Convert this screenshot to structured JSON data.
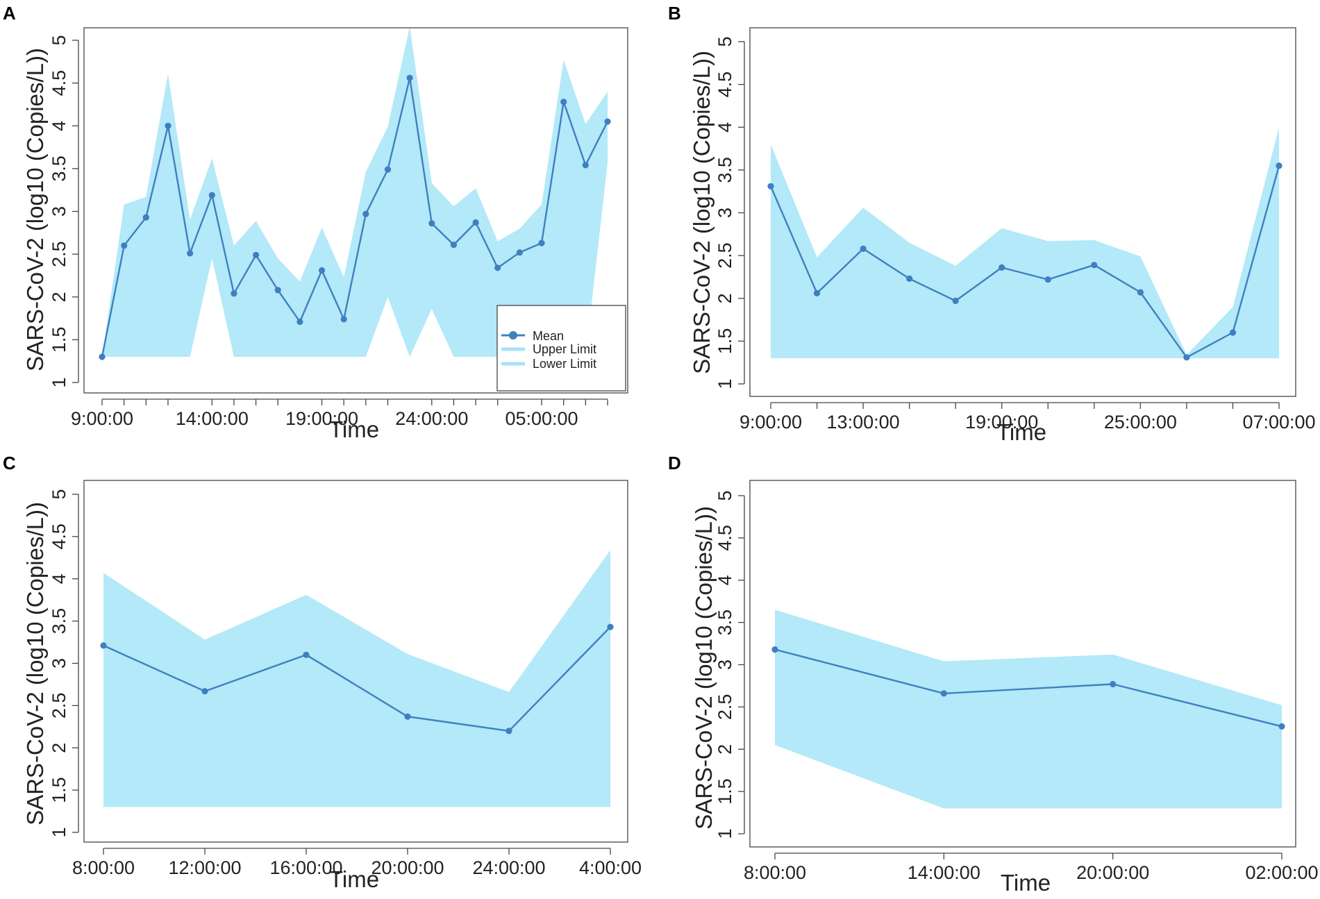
{
  "figure": {
    "colors": {
      "band": "#b3e9f8",
      "mean": "#3f7fc0",
      "axis": "#444444",
      "legend_band": "#a9e2f5"
    }
  },
  "chart_data": [
    {
      "panel": "A",
      "type": "area",
      "xlabel": "Time",
      "ylabel": "SARS-CoV-2 (log10 (Copies/L))",
      "ylim": [
        1,
        5
      ],
      "yticks": [
        "1",
        "1.5",
        "2",
        "2.5",
        "3",
        "3.5",
        "4",
        "4.5",
        "5"
      ],
      "x_index": [
        0,
        1,
        2,
        3,
        4,
        5,
        6,
        7,
        8,
        9,
        10,
        11,
        12,
        13,
        14,
        15,
        16,
        17,
        18,
        19,
        20,
        21,
        22,
        23
      ],
      "xticks": [
        {
          "i": 0,
          "label": "9:00:00"
        },
        {
          "i": 1,
          "label": ""
        },
        {
          "i": 2,
          "label": ""
        },
        {
          "i": 3,
          "label": ""
        },
        {
          "i": 5,
          "label": "14:00:00"
        },
        {
          "i": 6,
          "label": ""
        },
        {
          "i": 7,
          "label": ""
        },
        {
          "i": 8,
          "label": ""
        },
        {
          "i": 10,
          "label": "19:00:00"
        },
        {
          "i": 11,
          "label": ""
        },
        {
          "i": 12,
          "label": ""
        },
        {
          "i": 13,
          "label": ""
        },
        {
          "i": 15,
          "label": "24:00:00"
        },
        {
          "i": 16,
          "label": ""
        },
        {
          "i": 17,
          "label": ""
        },
        {
          "i": 18,
          "label": ""
        },
        {
          "i": 20,
          "label": "05:00:00"
        },
        {
          "i": 21,
          "label": ""
        },
        {
          "i": 22,
          "label": ""
        },
        {
          "i": 23,
          "label": ""
        }
      ],
      "series": [
        {
          "name": "Mean",
          "values": [
            1.3,
            2.6,
            2.93,
            4.0,
            2.51,
            3.19,
            2.04,
            2.49,
            2.08,
            1.71,
            2.31,
            1.74,
            2.97,
            3.49,
            4.56,
            2.86,
            2.61,
            2.87,
            2.34,
            2.52,
            2.63,
            4.28,
            3.54,
            4.05
          ]
        },
        {
          "name": "Upper Limit",
          "values": [
            1.3,
            3.08,
            3.17,
            4.61,
            2.9,
            3.62,
            2.6,
            2.89,
            2.45,
            2.18,
            2.81,
            2.23,
            3.46,
            3.99,
            5.16,
            3.33,
            3.06,
            3.27,
            2.65,
            2.8,
            3.08,
            4.77,
            4.02,
            4.4
          ]
        },
        {
          "name": "Lower Limit",
          "values": [
            1.3,
            1.3,
            1.3,
            1.3,
            1.3,
            2.45,
            1.3,
            1.3,
            1.3,
            1.3,
            1.3,
            1.3,
            1.3,
            2.0,
            1.3,
            1.86,
            1.3,
            1.3,
            1.3,
            1.3,
            1.3,
            1.3,
            1.3,
            3.57
          ]
        }
      ],
      "legend": {
        "position": "inside bottom-right",
        "entries": [
          "Mean",
          "Upper Limit",
          "Lower Limit"
        ]
      }
    },
    {
      "panel": "B",
      "type": "area",
      "xlabel": "Time",
      "ylabel": "SARS-CoV-2 (log10 (Copies/L))",
      "ylim": [
        1,
        5
      ],
      "yticks": [
        "1",
        "1.5",
        "2",
        "2.5",
        "3",
        "3.5",
        "4",
        "4.5",
        "5"
      ],
      "x_index": [
        0,
        1,
        2,
        3,
        4,
        5,
        6,
        7,
        8,
        9,
        10,
        11
      ],
      "xticks": [
        {
          "i": 0,
          "label": "9:00:00"
        },
        {
          "i": 1,
          "label": ""
        },
        {
          "i": 2,
          "label": "13:00:00"
        },
        {
          "i": 3,
          "label": ""
        },
        {
          "i": 4,
          "label": ""
        },
        {
          "i": 5,
          "label": "19:00:00"
        },
        {
          "i": 6,
          "label": ""
        },
        {
          "i": 7,
          "label": ""
        },
        {
          "i": 8,
          "label": "25:00:00"
        },
        {
          "i": 9,
          "label": ""
        },
        {
          "i": 10,
          "label": ""
        },
        {
          "i": 11,
          "label": "07:00:00"
        }
      ],
      "series": [
        {
          "name": "Mean",
          "values": [
            3.31,
            2.06,
            2.58,
            2.23,
            1.97,
            2.36,
            2.22,
            2.39,
            2.07,
            1.31,
            1.6,
            3.55
          ]
        },
        {
          "name": "Upper Limit",
          "values": [
            3.8,
            2.48,
            3.06,
            2.65,
            2.38,
            2.82,
            2.67,
            2.68,
            2.49,
            1.34,
            1.9,
            4.0
          ]
        },
        {
          "name": "Lower Limit",
          "values": [
            1.3,
            1.3,
            1.3,
            1.3,
            1.3,
            1.3,
            1.3,
            1.3,
            1.3,
            1.3,
            1.3,
            1.3
          ]
        }
      ]
    },
    {
      "panel": "C",
      "type": "area",
      "xlabel": "Time",
      "ylabel": "SARS-CoV-2 (log10 (Copies/L))",
      "ylim": [
        1,
        5
      ],
      "yticks": [
        "1",
        "1.5",
        "2",
        "2.5",
        "3",
        "3.5",
        "4",
        "4.5",
        "5"
      ],
      "x_index": [
        0,
        1,
        2,
        3,
        4,
        5
      ],
      "xticks": [
        {
          "i": 0,
          "label": "8:00:00"
        },
        {
          "i": 1,
          "label": "12:00:00"
        },
        {
          "i": 2,
          "label": "16:00:00"
        },
        {
          "i": 3,
          "label": "20:00:00"
        },
        {
          "i": 4,
          "label": "24:00:00"
        },
        {
          "i": 5,
          "label": "4:00:00"
        }
      ],
      "series": [
        {
          "name": "Mean",
          "values": [
            3.21,
            2.67,
            3.1,
            2.37,
            2.2,
            3.43
          ]
        },
        {
          "name": "Upper Limit",
          "values": [
            4.07,
            3.28,
            3.81,
            3.11,
            2.66,
            4.34
          ]
        },
        {
          "name": "Lower Limit",
          "values": [
            1.3,
            1.3,
            1.3,
            1.3,
            1.3,
            1.3
          ]
        }
      ]
    },
    {
      "panel": "D",
      "type": "area",
      "xlabel": "Time",
      "ylabel": "SARS-CoV-2 (log10 (Copies/L))",
      "ylim": [
        1,
        5
      ],
      "yticks": [
        "1",
        "1.5",
        "2",
        "2.5",
        "3",
        "3.5",
        "4",
        "4.5",
        "5"
      ],
      "x_index": [
        0,
        1,
        2,
        3
      ],
      "xticks": [
        {
          "i": 0,
          "label": "8:00:00"
        },
        {
          "i": 1,
          "label": "14:00:00"
        },
        {
          "i": 2,
          "label": "20:00:00"
        },
        {
          "i": 3,
          "label": "02:00:00"
        }
      ],
      "series": [
        {
          "name": "Mean",
          "values": [
            3.18,
            2.66,
            2.77,
            2.27
          ]
        },
        {
          "name": "Upper Limit",
          "values": [
            3.65,
            3.04,
            3.12,
            2.52
          ]
        },
        {
          "name": "Lower Limit",
          "values": [
            2.05,
            1.3,
            1.3,
            1.3
          ]
        }
      ]
    }
  ]
}
